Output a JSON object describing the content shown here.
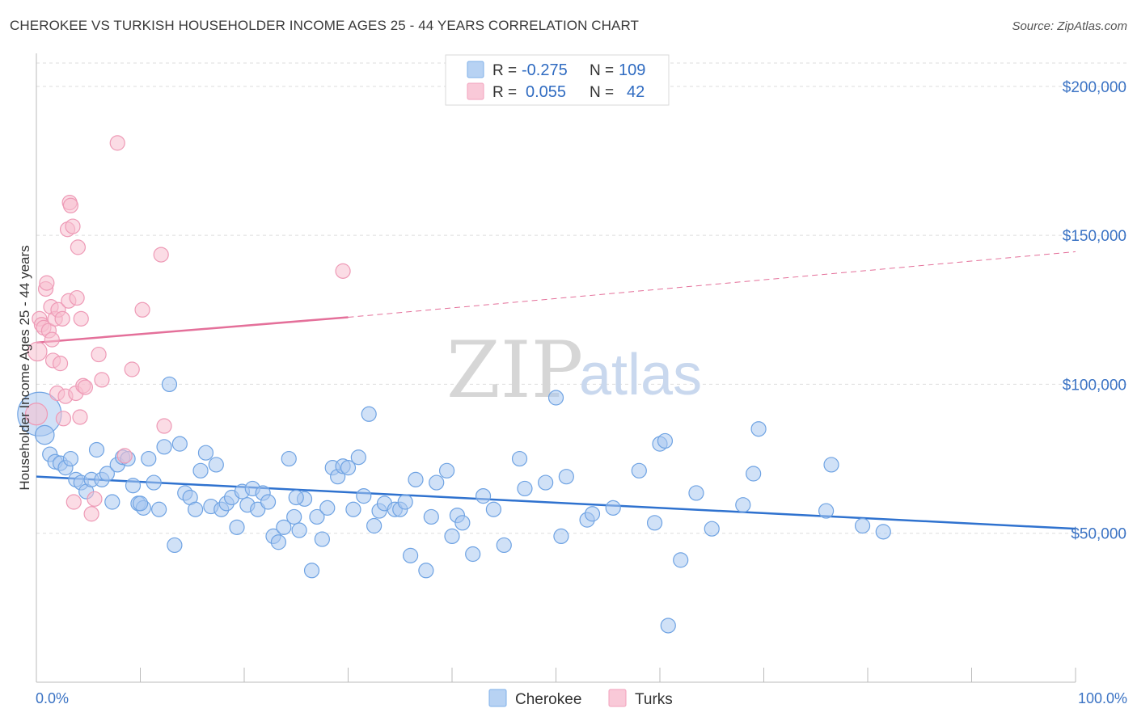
{
  "header": {
    "title": "CHEROKEE VS TURKISH HOUSEHOLDER INCOME AGES 25 - 44 YEARS CORRELATION CHART",
    "source": "Source: ZipAtlas.com"
  },
  "watermark": {
    "zip": "ZIP",
    "atlas": "atlas"
  },
  "legend": {
    "rows": [
      {
        "r_label": "R =",
        "r_value": "-0.275",
        "n_label": "N =",
        "n_value": "109",
        "color": "#7fb0ea"
      },
      {
        "r_label": "R =",
        "r_value": "0.055",
        "n_label": "N =",
        "n_value": "42",
        "color": "#f2a1bc"
      }
    ]
  },
  "bottom_legend": [
    "Cherokee",
    "Turks"
  ],
  "colors": {
    "cherokee_fill": "#a9c8f0",
    "cherokee_stroke": "#6fa3e3",
    "cherokee_line": "#2f72cf",
    "turks_fill": "#f7bfd0",
    "turks_stroke": "#ee9ab6",
    "turks_line": "#e4709a",
    "grid": "#dddddd",
    "axis_text": "#3b73c4"
  },
  "chart_data": {
    "type": "scatter",
    "title": "CHEROKEE VS TURKISH HOUSEHOLDER INCOME AGES 25 - 44 YEARS CORRELATION CHART",
    "xlabel": "",
    "ylabel": "Householder Income Ages 25 - 44 years",
    "xlim": [
      0,
      100
    ],
    "ylim": [
      0,
      210000
    ],
    "x_tick_labels": [
      "0.0%",
      "100.0%"
    ],
    "y_ticks": [
      50000,
      100000,
      150000,
      200000
    ],
    "y_tick_labels": [
      "$50,000",
      "$100,000",
      "$150,000",
      "$200,000"
    ],
    "grid": "horizontal dashed",
    "legend_position": "top-center",
    "series": [
      {
        "name": "Cherokee",
        "r": -0.275,
        "n": 109,
        "trend": {
          "x": [
            0,
            100
          ],
          "y": [
            69000,
            51500
          ],
          "dashed_from": null
        },
        "points": [
          [
            0.3,
            90000,
            3.0
          ],
          [
            0.8,
            83000,
            1.3
          ],
          [
            1.3,
            76500,
            1
          ],
          [
            1.8,
            74000,
            1
          ],
          [
            2.3,
            73500,
            1
          ],
          [
            2.8,
            72000,
            1
          ],
          [
            3.3,
            75000,
            1
          ],
          [
            3.8,
            68000,
            1
          ],
          [
            4.3,
            67000,
            1
          ],
          [
            4.8,
            64000,
            1
          ],
          [
            5.3,
            68000,
            1
          ],
          [
            5.8,
            78000,
            1
          ],
          [
            6.3,
            68000,
            1
          ],
          [
            6.8,
            70000,
            1
          ],
          [
            7.3,
            60500,
            1
          ],
          [
            7.8,
            73000,
            1
          ],
          [
            8.3,
            75500,
            1
          ],
          [
            8.8,
            75000,
            1
          ],
          [
            9.3,
            66000,
            1
          ],
          [
            9.8,
            60000,
            1
          ],
          [
            10.3,
            58500,
            1
          ],
          [
            10.8,
            75000,
            1
          ],
          [
            11.3,
            67000,
            1
          ],
          [
            11.8,
            58000,
            1
          ],
          [
            12.3,
            79000,
            1
          ],
          [
            12.8,
            100000,
            1
          ],
          [
            13.3,
            46000,
            1
          ],
          [
            13.8,
            80000,
            1
          ],
          [
            14.3,
            63500,
            1
          ],
          [
            14.8,
            62000,
            1
          ],
          [
            15.3,
            58000,
            1
          ],
          [
            15.8,
            71000,
            1
          ],
          [
            16.3,
            77000,
            1
          ],
          [
            16.8,
            59000,
            1
          ],
          [
            17.3,
            73000,
            1
          ],
          [
            17.8,
            58000,
            1
          ],
          [
            18.3,
            60000,
            1
          ],
          [
            18.8,
            62000,
            1
          ],
          [
            19.3,
            52000,
            1
          ],
          [
            19.8,
            64000,
            1
          ],
          [
            20.3,
            59500,
            1
          ],
          [
            20.8,
            65000,
            1
          ],
          [
            21.3,
            58000,
            1
          ],
          [
            21.8,
            63500,
            1
          ],
          [
            22.3,
            60500,
            1
          ],
          [
            22.8,
            49000,
            1
          ],
          [
            23.3,
            47000,
            1
          ],
          [
            23.8,
            52000,
            1
          ],
          [
            24.3,
            75000,
            1
          ],
          [
            24.8,
            55500,
            1
          ],
          [
            25.3,
            51000,
            1
          ],
          [
            25.8,
            61500,
            1
          ],
          [
            26.5,
            37500,
            1
          ],
          [
            27.0,
            55500,
            1
          ],
          [
            27.5,
            48000,
            1
          ],
          [
            28.0,
            58500,
            1
          ],
          [
            28.5,
            72000,
            1
          ],
          [
            29.0,
            69000,
            1
          ],
          [
            29.5,
            72500,
            1
          ],
          [
            30.0,
            72000,
            1
          ],
          [
            30.5,
            58000,
            1
          ],
          [
            31.0,
            75500,
            1
          ],
          [
            31.5,
            62500,
            1
          ],
          [
            32.0,
            90000,
            1
          ],
          [
            32.5,
            52500,
            1
          ],
          [
            33.0,
            57500,
            1
          ],
          [
            33.5,
            60000,
            1
          ],
          [
            34.5,
            58000,
            1
          ],
          [
            35.0,
            58000,
            1
          ],
          [
            35.5,
            60500,
            1
          ],
          [
            36.0,
            42500,
            1
          ],
          [
            36.5,
            68000,
            1
          ],
          [
            37.5,
            37500,
            1
          ],
          [
            38.0,
            55500,
            1
          ],
          [
            38.5,
            67000,
            1
          ],
          [
            39.5,
            71000,
            1
          ],
          [
            40.0,
            49000,
            1
          ],
          [
            40.5,
            56000,
            1
          ],
          [
            41.0,
            53500,
            1
          ],
          [
            42.0,
            43000,
            1
          ],
          [
            43.0,
            62500,
            1
          ],
          [
            44.0,
            58000,
            1
          ],
          [
            45.0,
            46000,
            1
          ],
          [
            46.5,
            75000,
            1
          ],
          [
            47.0,
            65000,
            1
          ],
          [
            49.0,
            67000,
            1
          ],
          [
            50.0,
            95500,
            1
          ],
          [
            50.5,
            49000,
            1
          ],
          [
            51.0,
            69000,
            1
          ],
          [
            53.0,
            54500,
            1
          ],
          [
            53.5,
            56500,
            1
          ],
          [
            55.5,
            58500,
            1
          ],
          [
            58.0,
            71000,
            1
          ],
          [
            59.5,
            53500,
            1
          ],
          [
            60.0,
            80000,
            1
          ],
          [
            60.5,
            81000,
            1
          ],
          [
            60.8,
            19000,
            1
          ],
          [
            62.0,
            41000,
            1
          ],
          [
            63.5,
            63500,
            1
          ],
          [
            65.0,
            51500,
            1
          ],
          [
            68.0,
            59500,
            1
          ],
          [
            69.0,
            70000,
            1
          ],
          [
            69.5,
            85000,
            1
          ],
          [
            76.0,
            57500,
            1
          ],
          [
            76.5,
            73000,
            1
          ],
          [
            79.5,
            52500,
            1
          ],
          [
            81.5,
            50500,
            1
          ],
          [
            25.0,
            62000,
            1
          ],
          [
            10.0,
            60000,
            1
          ]
        ]
      },
      {
        "name": "Turks",
        "r": 0.055,
        "n": 42,
        "trend": {
          "x": [
            0,
            30,
            100
          ],
          "y": [
            114000,
            122500,
            144500
          ],
          "dashed_from": 30
        },
        "points": [
          [
            0.0,
            90000,
            1.5
          ],
          [
            0.1,
            111000,
            1.3
          ],
          [
            0.3,
            122000,
            1
          ],
          [
            0.5,
            120000,
            1
          ],
          [
            0.7,
            119000,
            1
          ],
          [
            0.9,
            132000,
            1
          ],
          [
            1.0,
            134000,
            1
          ],
          [
            1.2,
            118000,
            1
          ],
          [
            1.4,
            126000,
            1
          ],
          [
            1.5,
            115000,
            1
          ],
          [
            1.6,
            108000,
            1
          ],
          [
            1.8,
            122000,
            1
          ],
          [
            2.0,
            97000,
            1
          ],
          [
            2.1,
            125000,
            1
          ],
          [
            2.3,
            107000,
            1
          ],
          [
            2.5,
            122000,
            1
          ],
          [
            2.6,
            88500,
            1
          ],
          [
            2.8,
            96000,
            1
          ],
          [
            3.0,
            152000,
            1
          ],
          [
            3.1,
            128000,
            1
          ],
          [
            3.2,
            161000,
            1
          ],
          [
            3.3,
            160000,
            1
          ],
          [
            3.5,
            153000,
            1
          ],
          [
            3.6,
            60500,
            1
          ],
          [
            3.8,
            97000,
            1
          ],
          [
            3.9,
            129000,
            1
          ],
          [
            4.0,
            146000,
            1
          ],
          [
            4.2,
            89000,
            1
          ],
          [
            4.3,
            122000,
            1
          ],
          [
            4.5,
            99500,
            1
          ],
          [
            4.7,
            99000,
            1
          ],
          [
            5.3,
            56500,
            1
          ],
          [
            5.6,
            61500,
            1
          ],
          [
            6.0,
            110000,
            1
          ],
          [
            6.3,
            101500,
            1
          ],
          [
            7.8,
            181000,
            1
          ],
          [
            8.5,
            76000,
            1
          ],
          [
            9.2,
            105000,
            1
          ],
          [
            10.2,
            125000,
            1
          ],
          [
            12.0,
            143500,
            1
          ],
          [
            12.3,
            86000,
            1
          ],
          [
            29.5,
            138000,
            1
          ]
        ]
      }
    ]
  }
}
